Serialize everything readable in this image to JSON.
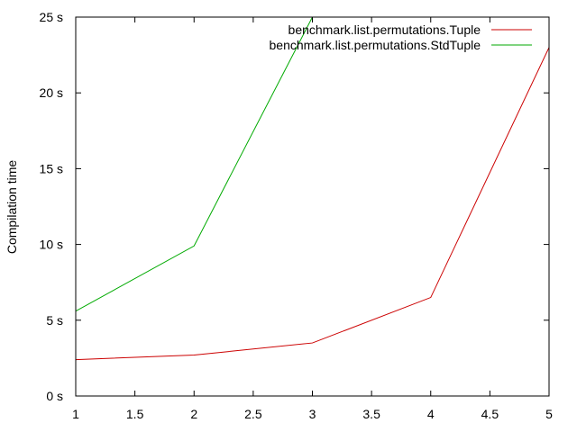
{
  "chart_data": {
    "type": "line",
    "title": "",
    "xlabel": "",
    "ylabel": "Compilation time",
    "xlim": [
      1,
      5
    ],
    "ylim": [
      0,
      25
    ],
    "grid": false,
    "legend_position": "top-right",
    "x_ticks": [
      {
        "value": 1,
        "label": "1"
      },
      {
        "value": 1.5,
        "label": "1.5"
      },
      {
        "value": 2,
        "label": "2"
      },
      {
        "value": 2.5,
        "label": "2.5"
      },
      {
        "value": 3,
        "label": "3"
      },
      {
        "value": 3.5,
        "label": "3.5"
      },
      {
        "value": 4,
        "label": "4"
      },
      {
        "value": 4.5,
        "label": "4.5"
      },
      {
        "value": 5,
        "label": "5"
      }
    ],
    "y_ticks": [
      {
        "value": 0,
        "label": "0 s"
      },
      {
        "value": 5,
        "label": "5 s"
      },
      {
        "value": 10,
        "label": "10 s"
      },
      {
        "value": 15,
        "label": "15 s"
      },
      {
        "value": 20,
        "label": "20 s"
      },
      {
        "value": 25,
        "label": "25 s"
      }
    ],
    "series": [
      {
        "name": "benchmark.list.permutations.Tuple",
        "color": "#cc0000",
        "x": [
          1,
          2,
          3,
          4,
          5
        ],
        "y": [
          2.4,
          2.7,
          3.5,
          6.5,
          23.0
        ]
      },
      {
        "name": "benchmark.list.permutations.StdTuple",
        "color": "#00aa00",
        "x": [
          1,
          2,
          3,
          4
        ],
        "y": [
          5.6,
          9.9,
          25.0,
          26.0
        ]
      }
    ]
  }
}
